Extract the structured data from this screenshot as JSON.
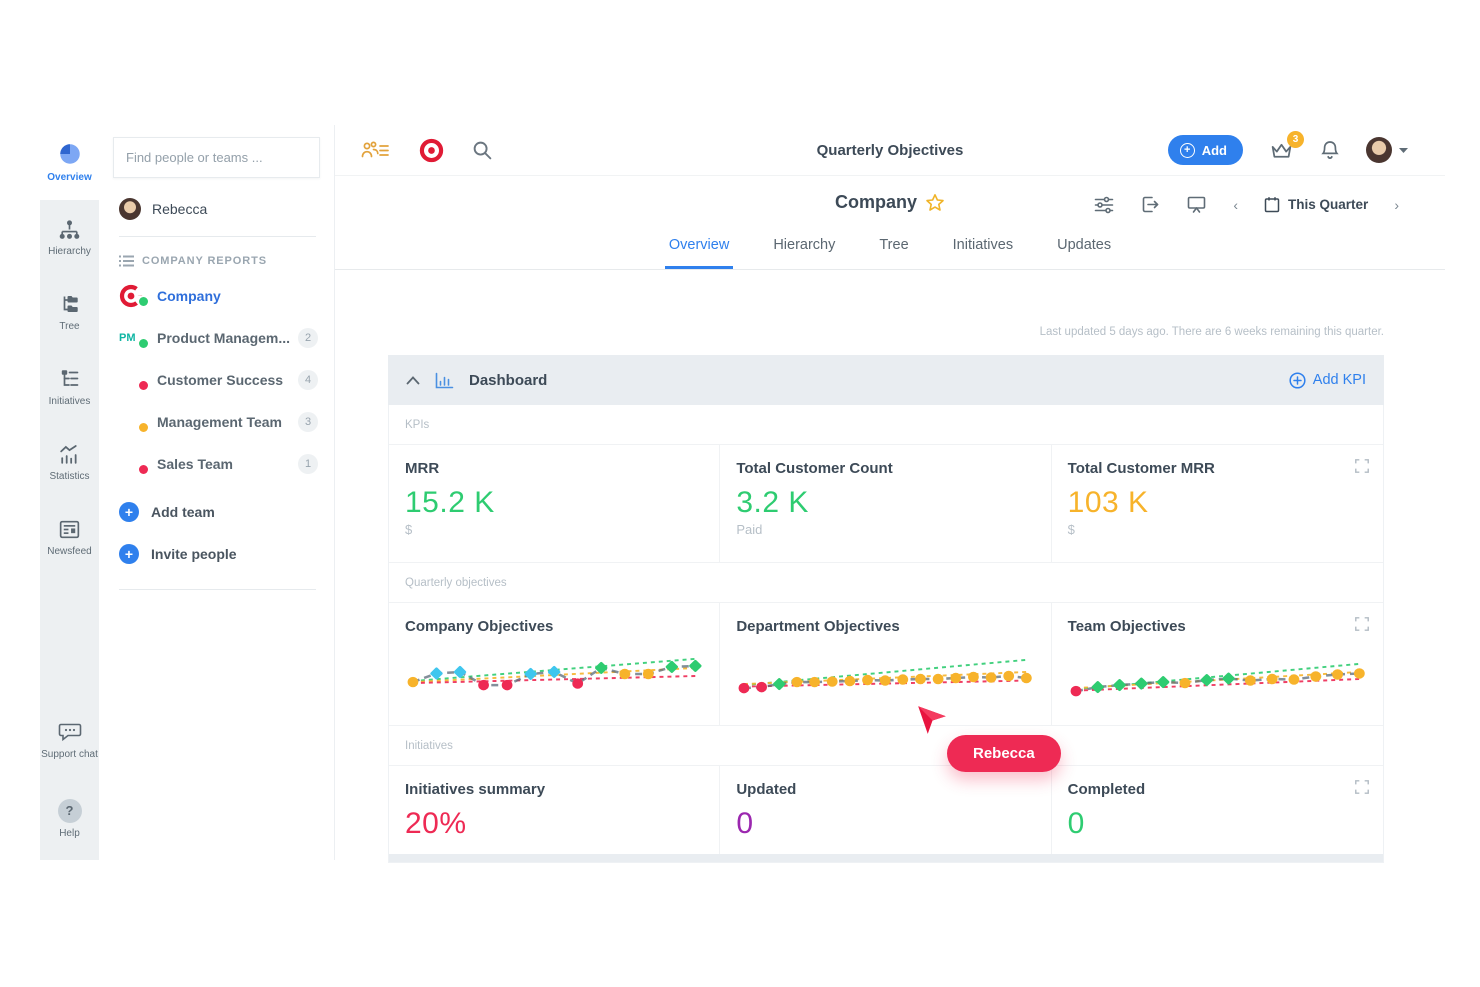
{
  "colors": {
    "accent": "#2f80ed",
    "green": "#2ecc71",
    "yellow": "#f7b32b",
    "amber": "#f7b32b",
    "red": "#ee2a54",
    "purple": "#9b27af",
    "cyan": "#3fc6ee",
    "dark": "#3d4a57",
    "grey": "#9aa6b0"
  },
  "icon_rail": {
    "items": [
      {
        "label": "Overview",
        "icon": "pie-chart-icon",
        "active": true
      },
      {
        "label": "Hierarchy",
        "icon": "org-chart-icon",
        "active": false
      },
      {
        "label": "Tree",
        "icon": "folder-tree-icon",
        "active": false
      },
      {
        "label": "Initiatives",
        "icon": "list-tree-icon",
        "active": false
      },
      {
        "label": "Statistics",
        "icon": "stats-icon",
        "active": false
      },
      {
        "label": "Newsfeed",
        "icon": "newsfeed-icon",
        "active": false
      }
    ],
    "footer": [
      {
        "label": "Support chat",
        "icon": "chat-bubble-icon"
      },
      {
        "label": "Help",
        "icon": "question-icon",
        "glyph": "?"
      }
    ]
  },
  "sidebar": {
    "search_placeholder": "Find people or teams ...",
    "user": {
      "name": "Rebecca"
    },
    "section_title": "COMPANY REPORTS",
    "teams": [
      {
        "label": "Company",
        "status": "green",
        "active": true
      },
      {
        "label": "Product Managem...",
        "logo_text": "PM",
        "status": "green",
        "badge": "2"
      },
      {
        "label": "Customer Success",
        "status": "red",
        "badge": "4"
      },
      {
        "label": "Management Team",
        "status": "yellow",
        "badge": "3"
      },
      {
        "label": "Sales Team",
        "status": "red",
        "badge": "1"
      }
    ],
    "actions": [
      {
        "label": "Add team"
      },
      {
        "label": "Invite people"
      }
    ]
  },
  "topbar": {
    "title": "Quarterly Objectives",
    "add_button": "Add",
    "add_plus": "+",
    "cart_badge": "3"
  },
  "page_header": {
    "title": "Company",
    "tabs": [
      {
        "label": "Overview",
        "active": true
      },
      {
        "label": "Hierarchy",
        "active": false
      },
      {
        "label": "Tree",
        "active": false
      },
      {
        "label": "Initiatives",
        "active": false
      },
      {
        "label": "Updates",
        "active": false
      }
    ],
    "period": "This Quarter",
    "prev_arrow": "‹",
    "next_arrow": "›"
  },
  "status_line": "Last updated 5 days ago. There are 6 weeks remaining this quarter.",
  "dashboard": {
    "title": "Dashboard",
    "add_kpi_label": "Add KPI",
    "sections": {
      "kpis": {
        "label": "KPIs",
        "cards": [
          {
            "title": "MRR",
            "value": "15.2 K",
            "sub": "$",
            "color": "green"
          },
          {
            "title": "Total Customer Count",
            "value": "3.2 K",
            "sub": "Paid",
            "color": "green"
          },
          {
            "title": "Total Customer MRR",
            "value": "103 K",
            "sub": "$",
            "color": "yellow"
          }
        ]
      },
      "objectives": {
        "label": "Quarterly objectives",
        "cards": [
          {
            "title": "Company Objectives"
          },
          {
            "title": "Department Objectives"
          },
          {
            "title": "Team Objectives"
          }
        ]
      },
      "initiatives": {
        "label": "Initiatives",
        "cards": [
          {
            "title": "Initiatives summary",
            "value": "20%",
            "color": "red"
          },
          {
            "title": "Updated",
            "value": "0",
            "color": "purple"
          },
          {
            "title": "Completed",
            "value": "0",
            "color": "green"
          }
        ]
      }
    }
  },
  "chart_data": [
    {
      "type": "line",
      "title": "Company Objectives",
      "ylim": [
        0,
        100
      ],
      "points": [
        {
          "y": 30,
          "color": "yellow",
          "shape": "circle"
        },
        {
          "y": 47,
          "color": "cyan",
          "shape": "diamond"
        },
        {
          "y": 50,
          "color": "cyan",
          "shape": "diamond"
        },
        {
          "y": 24,
          "color": "red",
          "shape": "circle"
        },
        {
          "y": 24,
          "color": "red",
          "shape": "circle"
        },
        {
          "y": 46,
          "color": "cyan",
          "shape": "diamond"
        },
        {
          "y": 50,
          "color": "cyan",
          "shape": "diamond"
        },
        {
          "y": 27,
          "color": "red",
          "shape": "circle"
        },
        {
          "y": 58,
          "color": "green",
          "shape": "diamond"
        },
        {
          "y": 46,
          "color": "yellow",
          "shape": "circle"
        },
        {
          "y": 46,
          "color": "yellow",
          "shape": "circle"
        },
        {
          "y": 60,
          "color": "green",
          "shape": "diamond"
        },
        {
          "y": 62,
          "color": "green",
          "shape": "diamond"
        }
      ],
      "trendlines": [
        {
          "color": "green",
          "from": 32,
          "to": 76
        },
        {
          "color": "yellow",
          "from": 30,
          "to": 58
        },
        {
          "color": "red",
          "from": 28,
          "to": 42
        }
      ]
    },
    {
      "type": "line",
      "title": "Department Objectives",
      "ylim": [
        0,
        100
      ],
      "points": [
        {
          "y": 18,
          "color": "red",
          "shape": "circle"
        },
        {
          "y": 20,
          "color": "red",
          "shape": "circle"
        },
        {
          "y": 26,
          "color": "green",
          "shape": "diamond"
        },
        {
          "y": 30,
          "color": "yellow",
          "shape": "circle"
        },
        {
          "y": 30,
          "color": "yellow",
          "shape": "circle"
        },
        {
          "y": 31,
          "color": "yellow",
          "shape": "circle"
        },
        {
          "y": 32,
          "color": "yellow",
          "shape": "circle"
        },
        {
          "y": 34,
          "color": "yellow",
          "shape": "circle"
        },
        {
          "y": 33,
          "color": "yellow",
          "shape": "circle"
        },
        {
          "y": 35,
          "color": "yellow",
          "shape": "circle"
        },
        {
          "y": 36,
          "color": "yellow",
          "shape": "circle"
        },
        {
          "y": 36,
          "color": "yellow",
          "shape": "circle"
        },
        {
          "y": 38,
          "color": "yellow",
          "shape": "circle"
        },
        {
          "y": 40,
          "color": "yellow",
          "shape": "circle"
        },
        {
          "y": 39,
          "color": "yellow",
          "shape": "circle"
        },
        {
          "y": 42,
          "color": "yellow",
          "shape": "circle"
        },
        {
          "y": 38,
          "color": "yellow",
          "shape": "circle"
        }
      ],
      "trendlines": [
        {
          "color": "green",
          "from": 24,
          "to": 74
        },
        {
          "color": "yellow",
          "from": 26,
          "to": 50
        },
        {
          "color": "red",
          "from": 21,
          "to": 33
        }
      ]
    },
    {
      "type": "line",
      "title": "Team Objectives",
      "ylim": [
        0,
        100
      ],
      "points": [
        {
          "y": 12,
          "color": "red",
          "shape": "circle"
        },
        {
          "y": 20,
          "color": "green",
          "shape": "diamond"
        },
        {
          "y": 24,
          "color": "green",
          "shape": "diamond"
        },
        {
          "y": 27,
          "color": "green",
          "shape": "diamond"
        },
        {
          "y": 30,
          "color": "green",
          "shape": "diamond"
        },
        {
          "y": 28,
          "color": "yellow",
          "shape": "circle"
        },
        {
          "y": 34,
          "color": "green",
          "shape": "diamond"
        },
        {
          "y": 37,
          "color": "green",
          "shape": "diamond"
        },
        {
          "y": 33,
          "color": "yellow",
          "shape": "circle"
        },
        {
          "y": 36,
          "color": "yellow",
          "shape": "circle"
        },
        {
          "y": 35,
          "color": "yellow",
          "shape": "circle"
        },
        {
          "y": 41,
          "color": "yellow",
          "shape": "circle"
        },
        {
          "y": 45,
          "color": "yellow",
          "shape": "circle"
        },
        {
          "y": 47,
          "color": "yellow",
          "shape": "circle"
        }
      ],
      "trendlines": [
        {
          "color": "green",
          "from": 16,
          "to": 66
        },
        {
          "color": "yellow",
          "from": 18,
          "to": 50
        },
        {
          "color": "red",
          "from": 13,
          "to": 36
        }
      ]
    }
  ],
  "cursor": {
    "label": "Rebecca"
  }
}
